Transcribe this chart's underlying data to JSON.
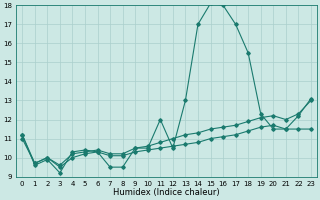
{
  "xlabel": "Humidex (Indice chaleur)",
  "x": [
    0,
    1,
    2,
    3,
    4,
    5,
    6,
    7,
    8,
    9,
    10,
    11,
    12,
    13,
    14,
    15,
    16,
    17,
    18,
    19,
    20,
    21,
    22,
    23
  ],
  "series": [
    [
      11.2,
      9.6,
      9.9,
      9.2,
      10.3,
      10.4,
      10.3,
      9.5,
      9.5,
      10.5,
      10.5,
      12.0,
      10.5,
      13.0,
      17.0,
      18.1,
      18.0,
      17.0,
      15.5,
      12.3,
      11.5,
      11.5,
      12.2,
      13.1
    ],
    [
      11.0,
      9.7,
      10.0,
      9.5,
      10.0,
      10.2,
      10.3,
      10.1,
      10.1,
      10.3,
      10.4,
      10.5,
      10.6,
      10.7,
      10.8,
      11.0,
      11.1,
      11.2,
      11.4,
      11.6,
      11.7,
      11.5,
      11.5,
      11.5
    ],
    [
      11.2,
      9.7,
      10.0,
      9.6,
      10.2,
      10.3,
      10.4,
      10.2,
      10.2,
      10.5,
      10.6,
      10.8,
      11.0,
      11.2,
      11.3,
      11.5,
      11.6,
      11.7,
      11.9,
      12.1,
      12.2,
      12.0,
      12.3,
      13.0
    ]
  ],
  "line_color": "#1a7a6e",
  "bg_color": "#cce8e4",
  "grid_color": "#aacfcc",
  "ylim": [
    9,
    18
  ],
  "xlim": [
    -0.5,
    23.5
  ],
  "yticks": [
    9,
    10,
    11,
    12,
    13,
    14,
    15,
    16,
    17,
    18
  ],
  "xticks": [
    0,
    1,
    2,
    3,
    4,
    5,
    6,
    7,
    8,
    9,
    10,
    11,
    12,
    13,
    14,
    15,
    16,
    17,
    18,
    19,
    20,
    21,
    22,
    23
  ],
  "tick_fontsize": 5,
  "xlabel_fontsize": 6
}
